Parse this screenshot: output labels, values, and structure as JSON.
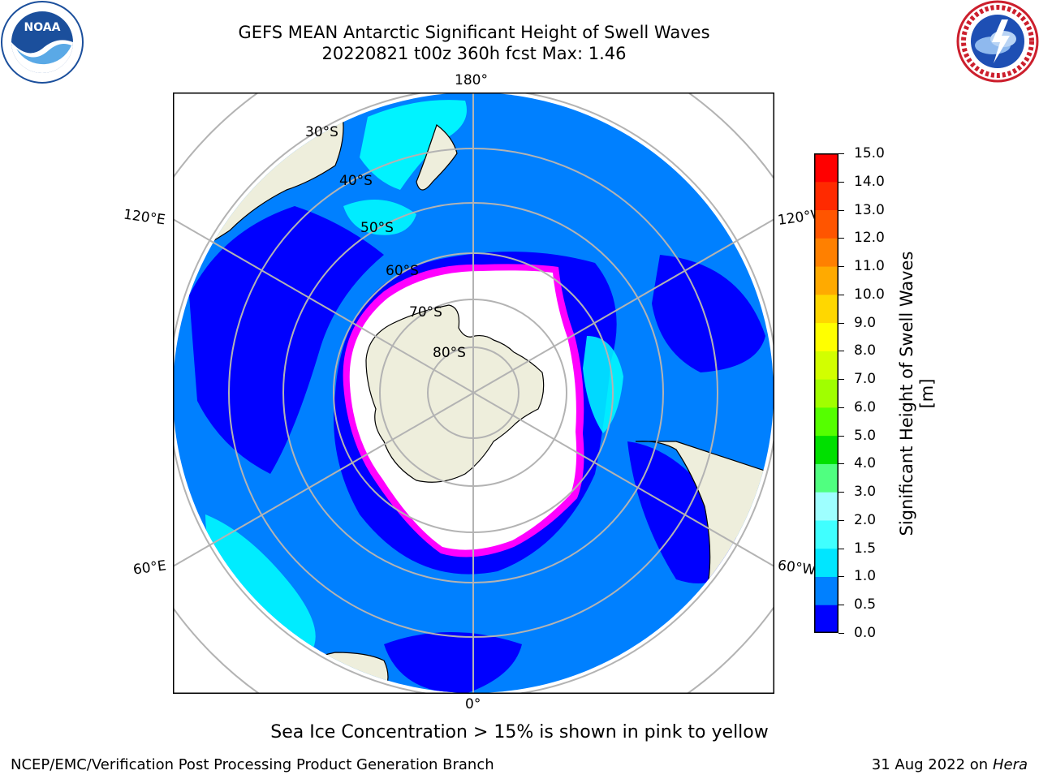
{
  "title": {
    "line1": "GEFS MEAN Antarctic Significant Height of Swell Waves",
    "line2": "20220821 t00z 360h fcst   Max: 1.46"
  },
  "logos": {
    "left": "noaa-logo",
    "right": "national-weather-service-logo"
  },
  "map": {
    "projection": "south-polar-stereographic",
    "lon_labels": [
      "180°",
      "120°E",
      "120°W",
      "60°E",
      "60°W",
      "0°"
    ],
    "lat_labels": [
      "30°S",
      "40°S",
      "50°S",
      "60°S",
      "70°S",
      "80°S"
    ],
    "colors": {
      "ocean_low": "#0000ff",
      "ocean_main": "#0080ff",
      "ocean_light": "#00ffff",
      "land": "#eeeedc",
      "ice": "#ffffff",
      "ice_edge": "#ff00ff",
      "ice_edge_outer": "#ffd700",
      "grid": "#b3b3b3"
    }
  },
  "colorbar": {
    "ticks": [
      "15.0",
      "14.0",
      "13.0",
      "12.0",
      "11.0",
      "10.0",
      "9.0",
      "8.0",
      "7.0",
      "6.0",
      "5.0",
      "4.0",
      "3.0",
      "2.0",
      "1.5",
      "1.0",
      "0.5",
      "0.0"
    ],
    "colors": [
      "#0000ff",
      "#0080ff",
      "#00e6ff",
      "#40ffff",
      "#9effff",
      "#50ff80",
      "#00e000",
      "#55ff00",
      "#a0ff00",
      "#d2ff00",
      "#ffff00",
      "#ffd700",
      "#ffaa00",
      "#ff8000",
      "#ff5500",
      "#ff2a00",
      "#ff0000"
    ],
    "label": "Significant Height of Swell Waves [m]"
  },
  "footnote": "Sea Ice Concentration > 15% is shown in pink to yellow",
  "credit_left": "NCEP/EMC/Verification Post Processing Product Generation Branch",
  "credit_right_date": "31 Aug 2022 on",
  "credit_right_system": "Hera"
}
